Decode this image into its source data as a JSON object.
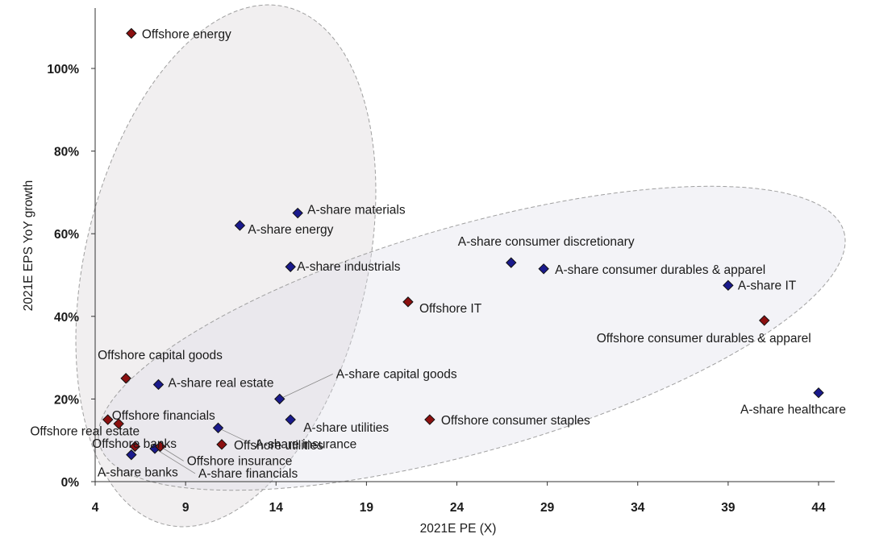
{
  "chart_data": {
    "type": "scatter",
    "title": "",
    "xlabel": "2021E PE (X)",
    "ylabel": "2021E EPS YoY growth",
    "xlim": [
      4,
      45
    ],
    "ylim": [
      0,
      115
    ],
    "x_ticks": [
      4,
      9,
      14,
      19,
      24,
      29,
      34,
      39,
      44
    ],
    "y_ticks": [
      {
        "value": 0,
        "label": "0%"
      },
      {
        "value": 20,
        "label": "20%"
      },
      {
        "value": 40,
        "label": "40%"
      },
      {
        "value": 60,
        "label": "60%"
      },
      {
        "value": 80,
        "label": "80%"
      },
      {
        "value": 100,
        "label": "100%"
      }
    ],
    "grid": false,
    "series": [
      {
        "name": "A-share",
        "color": "#1a1a8c",
        "points": [
          {
            "label": "A-share materials",
            "x": 15.2,
            "y": 65
          },
          {
            "label": "A-share energy",
            "x": 12.0,
            "y": 62
          },
          {
            "label": "A-share industrials",
            "x": 14.8,
            "y": 52
          },
          {
            "label": "A-share consumer discretionary",
            "x": 27.0,
            "y": 53
          },
          {
            "label": "A-share consumer durables & apparel",
            "x": 28.8,
            "y": 51.5
          },
          {
            "label": "A-share IT",
            "x": 39.0,
            "y": 47.5
          },
          {
            "label": "A-share healthcare",
            "x": 44.0,
            "y": 21.5
          },
          {
            "label": "A-share real estate",
            "x": 7.5,
            "y": 23.5
          },
          {
            "label": "A-share capital goods",
            "x": 14.2,
            "y": 20
          },
          {
            "label": "A-share insurance",
            "x": 10.8,
            "y": 13
          },
          {
            "label": "A-share utilities",
            "x": 14.8,
            "y": 15
          },
          {
            "label": "A-share banks",
            "x": 6.0,
            "y": 6.5
          },
          {
            "label": "A-share financials",
            "x": 7.3,
            "y": 8
          }
        ]
      },
      {
        "name": "Offshore",
        "color": "#8b1010",
        "points": [
          {
            "label": "Offshore energy",
            "x": 6.0,
            "y": 108.5
          },
          {
            "label": "Offshore IT",
            "x": 21.3,
            "y": 43.5
          },
          {
            "label": "Offshore consumer durables & apparel",
            "x": 41.0,
            "y": 39
          },
          {
            "label": "Offshore consumer staples",
            "x": 22.5,
            "y": 15
          },
          {
            "label": "Offshore capital goods",
            "x": 5.7,
            "y": 25
          },
          {
            "label": "Offshore banks",
            "x": 5.3,
            "y": 14
          },
          {
            "label": "Offshore financials",
            "x": 4.7,
            "y": 15
          },
          {
            "label": "Offshore real estate",
            "x": 6.2,
            "y": 8.5
          },
          {
            "label": "Offshore insurance",
            "x": 7.6,
            "y": 8.5
          },
          {
            "label": "Offshore utilities",
            "x": 11.0,
            "y": 9
          }
        ]
      }
    ],
    "groupings": [
      "high-growth ellipse",
      "broad ellipse"
    ]
  }
}
